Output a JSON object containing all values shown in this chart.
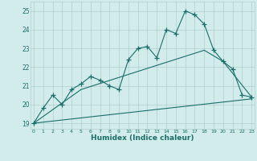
{
  "x_values": [
    0,
    1,
    2,
    3,
    4,
    5,
    6,
    7,
    8,
    9,
    10,
    11,
    12,
    13,
    14,
    15,
    16,
    17,
    18,
    19,
    20,
    21,
    22,
    23
  ],
  "line1": [
    19.0,
    19.8,
    20.5,
    20.0,
    20.8,
    21.1,
    21.5,
    21.3,
    21.0,
    20.8,
    22.4,
    23.0,
    23.1,
    22.5,
    24.0,
    23.8,
    25.0,
    24.8,
    24.3,
    22.9,
    22.3,
    21.9,
    20.5,
    20.4
  ],
  "line2_pts": [
    [
      0,
      19.0
    ],
    [
      5,
      20.8
    ],
    [
      18,
      22.9
    ],
    [
      20,
      22.3
    ],
    [
      23,
      20.4
    ]
  ],
  "line3_pts": [
    [
      0,
      19.0
    ],
    [
      23,
      20.3
    ]
  ],
  "bg_color": "#d1ecea",
  "grid_color": "#b0cece",
  "line_color": "#1a6e6a",
  "xlabel": "Humidex (Indice chaleur)",
  "ylabel_ticks": [
    19,
    20,
    21,
    22,
    23,
    24,
    25
  ],
  "xlim": [
    -0.3,
    23.3
  ],
  "ylim": [
    18.7,
    25.5
  ],
  "marker": "+",
  "markersize": 4,
  "lw": 0.8
}
